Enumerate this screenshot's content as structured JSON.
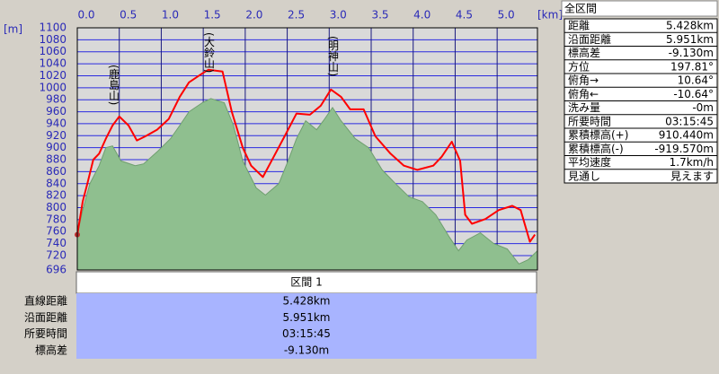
{
  "chart_data": {
    "type": "line",
    "xlabel": "[km]",
    "ylabel": "[m]",
    "xlim": [
      0,
      5.48
    ],
    "ylim": [
      696,
      1100
    ],
    "xticks": [
      {
        "value": 0,
        "label": "0.0"
      },
      0.5,
      {
        "value": 1,
        "label": "1.0"
      },
      1.5,
      {
        "value": 2,
        "label": "2.0"
      },
      2.5,
      {
        "value": 3,
        "label": "3.0"
      },
      3.5,
      {
        "value": 4,
        "label": "4.0"
      },
      4.5,
      {
        "value": 5,
        "label": "5.0"
      }
    ],
    "yticks": [
      696,
      720,
      740,
      760,
      780,
      800,
      820,
      840,
      860,
      880,
      900,
      920,
      940,
      960,
      980,
      1000,
      1020,
      1040,
      1060,
      1080,
      1100
    ],
    "grid": true,
    "annotations": [
      "(鹿島山)",
      "(大鈴山)",
      "(明神山)"
    ],
    "series": [
      {
        "color": "#8fbf8f",
        "fill": true,
        "x": [
          0,
          0.064,
          0.15,
          0.26,
          0.34,
          0.42,
          0.52,
          0.69,
          0.79,
          0.95,
          1.11,
          1.22,
          1.33,
          1.49,
          1.59,
          1.75,
          1.86,
          1.97,
          2.13,
          2.24,
          2.4,
          2.51,
          2.61,
          2.72,
          2.85,
          2.93,
          3.04,
          3.14,
          3.31,
          3.47,
          3.63,
          3.79,
          3.95,
          4.11,
          4.27,
          4.43,
          4.54,
          4.64,
          4.8,
          4.96,
          5.12,
          5.26,
          5.37,
          5.48
        ],
        "values": [
          755,
          796,
          840,
          870,
          900,
          903,
          878,
          870,
          873,
          893,
          915,
          937,
          960,
          975,
          982,
          975,
          937,
          878,
          833,
          821,
          840,
          878,
          915,
          945,
          930,
          945,
          967,
          945,
          915,
          900,
          863,
          840,
          818,
          810,
          788,
          751,
          728,
          746,
          758,
          740,
          731,
          706,
          713,
          728
        ]
      },
      {
        "color": "#ff0000",
        "fill": false,
        "x": [
          0,
          0.064,
          0.12,
          0.19,
          0.26,
          0.34,
          0.42,
          0.5,
          0.61,
          0.71,
          0.81,
          0.95,
          1.09,
          1.22,
          1.33,
          1.49,
          1.56,
          1.73,
          1.84,
          1.97,
          2.07,
          2.21,
          2.34,
          2.48,
          2.61,
          2.77,
          2.9,
          3.02,
          3.14,
          3.25,
          3.41,
          3.55,
          3.73,
          3.89,
          4.05,
          4.24,
          4.34,
          4.46,
          4.56,
          4.62,
          4.7,
          4.86,
          5.02,
          5.18,
          5.28,
          5.39,
          5.45
        ],
        "values": [
          755,
          810,
          840,
          880,
          890,
          915,
          937,
          952,
          937,
          912,
          919,
          930,
          948,
          985,
          1009,
          1024,
          1030,
          1027,
          960,
          900,
          870,
          851,
          885,
          922,
          957,
          955,
          970,
          997,
          985,
          964,
          964,
          919,
          890,
          870,
          863,
          870,
          885,
          910,
          878,
          788,
          773,
          781,
          796,
          803,
          796,
          743,
          755
        ]
      }
    ]
  },
  "summary": {
    "title": "全区間",
    "rows": [
      [
        "距離",
        "5.428km"
      ],
      [
        "沿面距離",
        "5.951km"
      ],
      [
        "標高差",
        "-9.130m"
      ],
      [
        "方位",
        "197.81°"
      ],
      [
        "俯角→",
        "10.64°"
      ],
      [
        "俯角←",
        "-10.64°"
      ],
      [
        "洗み量",
        "-0m"
      ],
      [
        "所要時間",
        "03:15:45"
      ],
      [
        "累積標高(+)",
        "910.440m"
      ],
      [
        "累積標高(-)",
        "-919.570m"
      ],
      [
        "平均速度",
        "1.7km/h"
      ],
      [
        "見通し",
        "見えます"
      ]
    ]
  },
  "section": {
    "title": "区間 1",
    "rows": [
      [
        "直線距離",
        "5.428km"
      ],
      [
        "沿面距離",
        "5.951km"
      ],
      [
        "所要時間",
        "03:15:45"
      ],
      [
        "標高差",
        "-9.130m"
      ]
    ]
  }
}
